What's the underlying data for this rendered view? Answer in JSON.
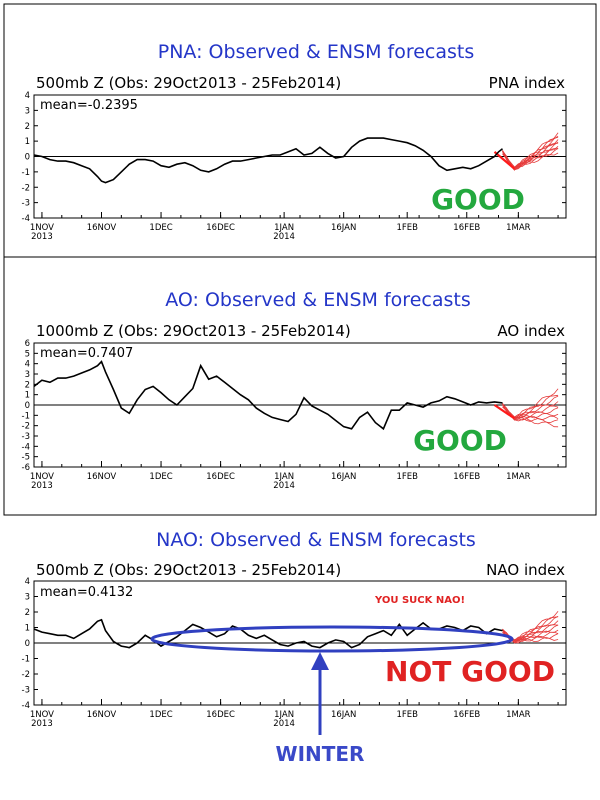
{
  "chart_data": [
    {
      "type": "line",
      "title": "PNA: Observed & ENSM forecasts",
      "subtitle_left": "500mb Z (Obs: 29Oct2013 - 25Feb2014)",
      "subtitle_right": "PNA index",
      "mean_text": "mean=-0.2395",
      "ylim": [
        -4,
        4
      ],
      "yticks": [
        "4",
        "3",
        "2",
        "1",
        "0",
        "-1",
        "-2",
        "-3",
        "-4"
      ],
      "x_labels": [
        {
          "day": 0,
          "line1": "1NOV",
          "line2": "2013"
        },
        {
          "day": 15,
          "line1": "16NOV",
          "line2": ""
        },
        {
          "day": 30,
          "line1": "1DEC",
          "line2": ""
        },
        {
          "day": 45,
          "line1": "16DEC",
          "line2": ""
        },
        {
          "day": 61,
          "line1": "1JAN",
          "line2": "2014"
        },
        {
          "day": 76,
          "line1": "16JAN",
          "line2": ""
        },
        {
          "day": 92,
          "line1": "1FEB",
          "line2": ""
        },
        {
          "day": 107,
          "line1": "16FEB",
          "line2": ""
        },
        {
          "day": 120,
          "line1": "1MAR",
          "line2": ""
        }
      ],
      "observed": {
        "x": [
          -2,
          0,
          2,
          4,
          6,
          8,
          10,
          12,
          14,
          15,
          16,
          18,
          20,
          22,
          24,
          26,
          28,
          30,
          32,
          34,
          36,
          38,
          40,
          42,
          44,
          46,
          48,
          50,
          52,
          54,
          56,
          58,
          60,
          62,
          64,
          66,
          68,
          70,
          72,
          74,
          76,
          78,
          80,
          82,
          84,
          86,
          88,
          90,
          92,
          94,
          96,
          98,
          100,
          102,
          104,
          106,
          108,
          110,
          112,
          114,
          115,
          116
        ],
        "y": [
          0.1,
          0.0,
          -0.2,
          -0.3,
          -0.3,
          -0.4,
          -0.6,
          -0.8,
          -1.3,
          -1.6,
          -1.7,
          -1.5,
          -1.0,
          -0.5,
          -0.2,
          -0.2,
          -0.3,
          -0.6,
          -0.7,
          -0.5,
          -0.4,
          -0.6,
          -0.9,
          -1.0,
          -0.8,
          -0.5,
          -0.3,
          -0.3,
          -0.2,
          -0.1,
          0.0,
          0.1,
          0.1,
          0.3,
          0.5,
          0.1,
          0.2,
          0.6,
          0.2,
          -0.1,
          0.0,
          0.6,
          1.0,
          1.2,
          1.2,
          1.2,
          1.1,
          1.0,
          0.9,
          0.7,
          0.4,
          0.0,
          -0.6,
          -0.9,
          -0.8,
          -0.7,
          -0.8,
          -0.6,
          -0.3,
          0.0,
          0.3,
          0.5
        ]
      },
      "forecast": {
        "start_day": 116,
        "end_day": 130,
        "start_value": 0.3,
        "min_value": -0.8,
        "end_range": [
          0.3,
          1.5
        ],
        "members": 10
      },
      "annotation": {
        "text": "GOOD",
        "style": "good"
      }
    },
    {
      "type": "line",
      "title": "AO: Observed & ENSM forecasts",
      "subtitle_left": "1000mb Z (Obs: 29Oct2013 - 25Feb2014)",
      "subtitle_right": "AO index",
      "mean_text": "mean=0.7407",
      "ylim": [
        -6,
        6
      ],
      "yticks": [
        "6",
        "5",
        "4",
        "3",
        "2",
        "1",
        "0",
        "-1",
        "-2",
        "-3",
        "-4",
        "-5",
        "-6"
      ],
      "x_labels": [
        {
          "day": 0,
          "line1": "1NOV",
          "line2": "2013"
        },
        {
          "day": 15,
          "line1": "16NOV",
          "line2": ""
        },
        {
          "day": 30,
          "line1": "1DEC",
          "line2": ""
        },
        {
          "day": 45,
          "line1": "16DEC",
          "line2": ""
        },
        {
          "day": 61,
          "line1": "1JAN",
          "line2": "2014"
        },
        {
          "day": 76,
          "line1": "16JAN",
          "line2": ""
        },
        {
          "day": 92,
          "line1": "1FEB",
          "line2": ""
        },
        {
          "day": 107,
          "line1": "16FEB",
          "line2": ""
        },
        {
          "day": 120,
          "line1": "1MAR",
          "line2": ""
        }
      ],
      "observed": {
        "x": [
          -2,
          0,
          2,
          4,
          6,
          8,
          10,
          12,
          14,
          15,
          16,
          18,
          20,
          22,
          24,
          26,
          28,
          30,
          32,
          34,
          36,
          38,
          40,
          42,
          44,
          46,
          48,
          50,
          52,
          54,
          56,
          58,
          60,
          62,
          64,
          66,
          68,
          70,
          72,
          74,
          76,
          78,
          80,
          82,
          84,
          86,
          88,
          90,
          92,
          94,
          96,
          98,
          100,
          102,
          104,
          106,
          108,
          110,
          112,
          114,
          116
        ],
        "y": [
          1.8,
          2.4,
          2.2,
          2.6,
          2.6,
          2.8,
          3.1,
          3.4,
          3.8,
          4.2,
          3.2,
          1.5,
          -0.3,
          -0.8,
          0.5,
          1.5,
          1.8,
          1.2,
          0.5,
          0.0,
          0.8,
          1.6,
          3.8,
          2.5,
          2.8,
          2.2,
          1.6,
          1.0,
          0.5,
          -0.3,
          -0.8,
          -1.2,
          -1.4,
          -1.6,
          -0.9,
          0.7,
          -0.1,
          -0.5,
          -0.9,
          -1.5,
          -2.1,
          -2.3,
          -1.2,
          -0.7,
          -1.7,
          -2.3,
          -0.5,
          -0.5,
          0.2,
          0.0,
          -0.2,
          0.2,
          0.4,
          0.8,
          0.6,
          0.3,
          0.0,
          0.3,
          0.2,
          0.3,
          0.2
        ]
      },
      "forecast": {
        "start_day": 116,
        "end_day": 130,
        "start_value": 0.0,
        "min_value": -1.3,
        "end_range": [
          -2.0,
          1.5
        ],
        "members": 10
      },
      "annotation": {
        "text": "GOOD",
        "style": "good"
      }
    },
    {
      "type": "line",
      "title": "NAO: Observed & ENSM forecasts",
      "subtitle_left": "500mb Z (Obs: 29Oct2013 - 25Feb2014)",
      "subtitle_right": "NAO index",
      "mean_text": "mean=0.4132",
      "ylim": [
        -4,
        4
      ],
      "yticks": [
        "4",
        "3",
        "2",
        "1",
        "0",
        "-1",
        "-2",
        "-3",
        "-4"
      ],
      "x_labels": [
        {
          "day": 0,
          "line1": "1NOV",
          "line2": "2013"
        },
        {
          "day": 15,
          "line1": "16NOV",
          "line2": ""
        },
        {
          "day": 30,
          "line1": "1DEC",
          "line2": ""
        },
        {
          "day": 45,
          "line1": "16DEC",
          "line2": ""
        },
        {
          "day": 61,
          "line1": "1JAN",
          "line2": "2014"
        },
        {
          "day": 76,
          "line1": "16JAN",
          "line2": ""
        },
        {
          "day": 92,
          "line1": "1FEB",
          "line2": ""
        },
        {
          "day": 107,
          "line1": "16FEB",
          "line2": ""
        },
        {
          "day": 120,
          "line1": "1MAR",
          "line2": ""
        }
      ],
      "observed": {
        "x": [
          -2,
          0,
          2,
          4,
          6,
          8,
          10,
          12,
          14,
          15,
          16,
          18,
          20,
          22,
          24,
          26,
          28,
          30,
          32,
          34,
          36,
          38,
          40,
          42,
          44,
          46,
          48,
          50,
          52,
          54,
          56,
          58,
          60,
          62,
          64,
          66,
          68,
          70,
          72,
          74,
          76,
          78,
          80,
          82,
          84,
          86,
          88,
          90,
          92,
          94,
          96,
          98,
          100,
          102,
          104,
          106,
          108,
          110,
          112,
          114,
          116
        ],
        "y": [
          0.9,
          0.7,
          0.6,
          0.5,
          0.5,
          0.3,
          0.6,
          0.9,
          1.4,
          1.5,
          0.8,
          0.1,
          -0.2,
          -0.3,
          0.0,
          0.5,
          0.2,
          -0.2,
          0.1,
          0.4,
          0.8,
          1.2,
          1.0,
          0.7,
          0.4,
          0.6,
          1.1,
          0.9,
          0.5,
          0.3,
          0.5,
          0.2,
          -0.1,
          -0.2,
          0.0,
          0.1,
          -0.2,
          -0.3,
          0.0,
          0.2,
          0.1,
          -0.3,
          -0.1,
          0.4,
          0.6,
          0.8,
          0.5,
          1.2,
          0.5,
          0.9,
          1.3,
          0.9,
          0.9,
          1.1,
          1.0,
          0.8,
          1.1,
          1.0,
          0.6,
          0.9,
          0.8
        ]
      },
      "forecast": {
        "start_day": 116,
        "end_day": 130,
        "start_value": 0.8,
        "min_value": 0.1,
        "end_range": [
          0.3,
          2.0
        ],
        "members": 10
      },
      "annotation": {
        "text": "NOT GOOD",
        "style": "notgood"
      },
      "small_annotation": "YOU SUCK NAO!",
      "winter_label": "WINTER"
    }
  ],
  "colors": {
    "title": "#2436c8",
    "good": "#23a83e",
    "bad": "#e02222",
    "forecast": "#e53b3b",
    "ellipse": "#3040c0"
  }
}
